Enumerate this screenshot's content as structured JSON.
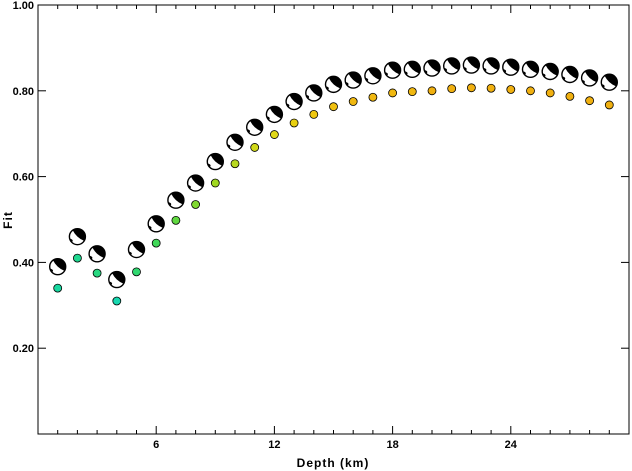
{
  "chart_data": {
    "type": "scatter",
    "xlabel": "Depth (km)",
    "ylabel": "Fit",
    "xlim": [
      0,
      30
    ],
    "ylim": [
      0.0,
      1.0
    ],
    "x_ticks": [
      6,
      12,
      18,
      24
    ],
    "x_tick_labels": [
      "6",
      "12",
      "18",
      "24"
    ],
    "y_ticks": [
      0.2,
      0.4,
      0.6,
      0.8,
      1.0
    ],
    "y_tick_labels": [
      "0.20",
      "0.40",
      "0.60",
      "0.80",
      "1.00"
    ],
    "grid": false,
    "series": [
      {
        "marker": "focal-mechanism",
        "x": [
          1,
          2,
          3,
          4,
          5,
          6,
          7,
          8,
          9,
          10,
          11,
          12,
          13,
          14,
          15,
          16,
          17,
          18,
          19,
          20,
          21,
          22,
          23,
          24,
          25,
          26,
          27,
          28,
          29
        ],
        "y": [
          0.39,
          0.46,
          0.42,
          0.36,
          0.43,
          0.49,
          0.545,
          0.585,
          0.635,
          0.68,
          0.715,
          0.745,
          0.775,
          0.795,
          0.815,
          0.825,
          0.835,
          0.848,
          0.85,
          0.853,
          0.858,
          0.86,
          0.858,
          0.855,
          0.85,
          0.845,
          0.838,
          0.83,
          0.82
        ]
      },
      {
        "marker": "dot",
        "x": [
          1,
          2,
          3,
          4,
          5,
          6,
          7,
          8,
          9,
          10,
          11,
          12,
          13,
          14,
          15,
          16,
          17,
          18,
          19,
          20,
          21,
          22,
          23,
          24,
          25,
          26,
          27,
          28,
          29
        ],
        "y": [
          0.34,
          0.41,
          0.375,
          0.31,
          0.378,
          0.445,
          0.498,
          0.535,
          0.585,
          0.63,
          0.668,
          0.698,
          0.725,
          0.745,
          0.763,
          0.775,
          0.785,
          0.795,
          0.798,
          0.8,
          0.805,
          0.807,
          0.806,
          0.803,
          0.8,
          0.795,
          0.787,
          0.777,
          0.767
        ],
        "colors": [
          "#18d8a0",
          "#20d890",
          "#28d880",
          "#18d8b0",
          "#30d870",
          "#40d858",
          "#60d840",
          "#80d830",
          "#a0d820",
          "#b8d820",
          "#d0d818",
          "#e0d818",
          "#e8d010",
          "#f0c810",
          "#f0c010",
          "#f0b810",
          "#f0b810",
          "#f0b810",
          "#f0b810",
          "#f0b010",
          "#f0b010",
          "#f0b010",
          "#f0b010",
          "#f0b010",
          "#f0b010",
          "#f0b010",
          "#f0b010",
          "#f0b010",
          "#f0b010"
        ]
      }
    ]
  }
}
